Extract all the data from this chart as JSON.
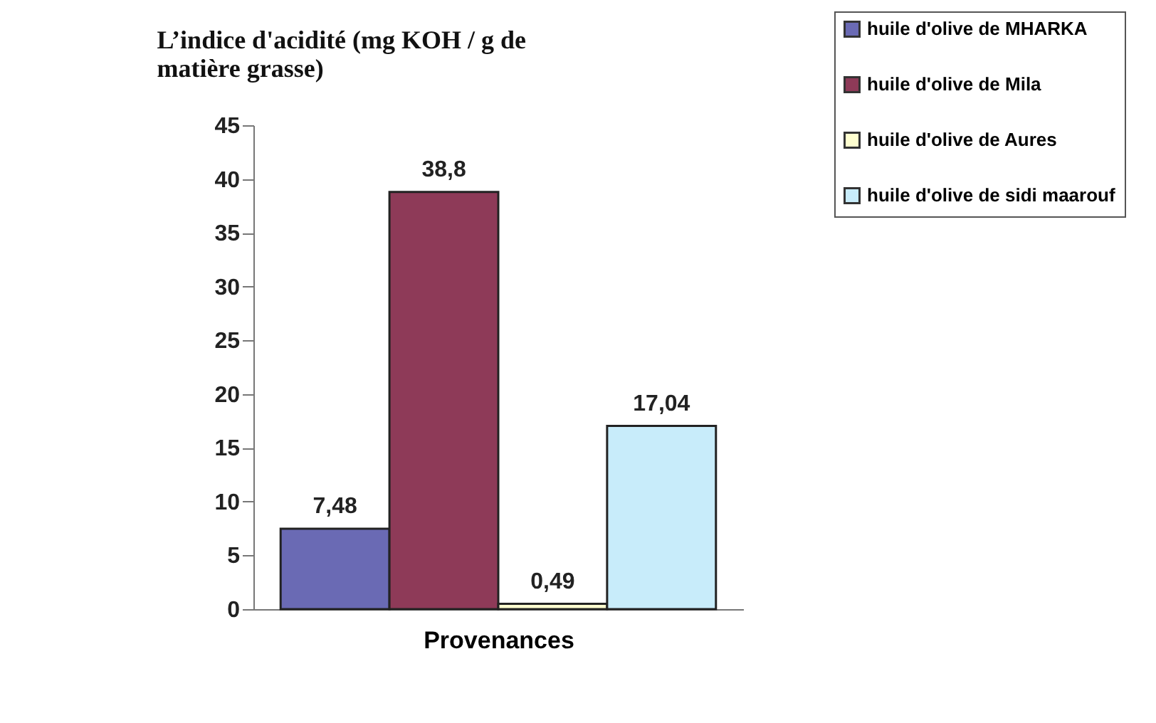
{
  "chart_data": {
    "type": "bar",
    "title": "L’indice d'acidité (mg KOH / g de matière grasse)",
    "xlabel": "Provenances",
    "categories": [
      null
    ],
    "series": [
      {
        "name": "huile d'olive de MHARKA",
        "color": "#6a6ab4",
        "values": [
          7.48
        ],
        "value_labels": [
          "7,48"
        ]
      },
      {
        "name": "huile d'olive de Mila",
        "color": "#8e3a58",
        "values": [
          38.8
        ],
        "value_labels": [
          "38,8"
        ]
      },
      {
        "name": "huile d'olive de Aures",
        "color": "#ffffd0",
        "values": [
          0.49
        ],
        "value_labels": [
          "0,49"
        ]
      },
      {
        "name": "huile d'olive de sidi maarouf",
        "color": "#c8ecfa",
        "values": [
          17.04
        ],
        "value_labels": [
          "17,04"
        ]
      }
    ],
    "ylim": [
      0,
      45
    ],
    "yticks": [
      0,
      5,
      10,
      15,
      20,
      25,
      30,
      35,
      40,
      45
    ],
    "grid": false,
    "legend": "top right",
    "tick_labels": "y"
  }
}
